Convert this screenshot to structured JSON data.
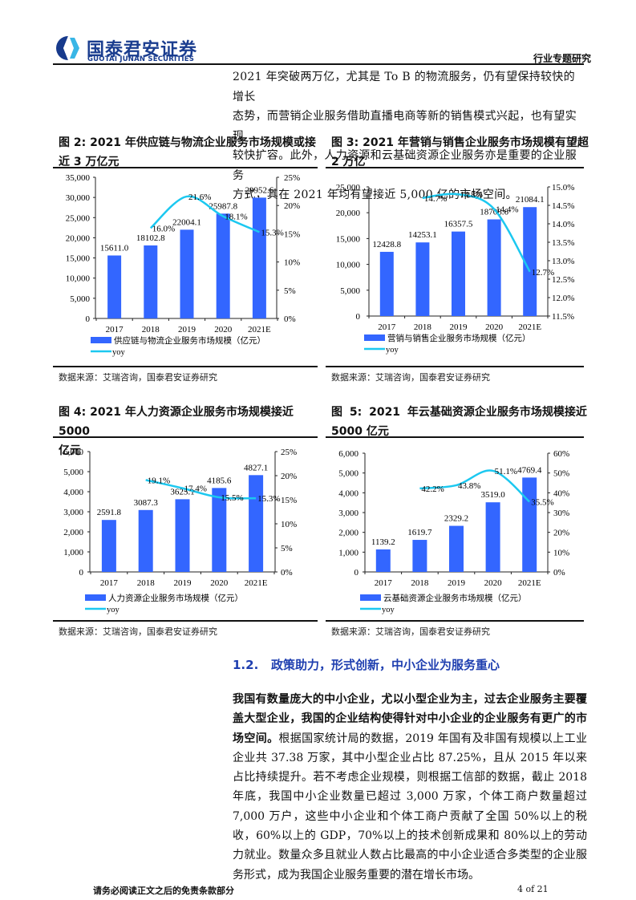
{
  "header": {
    "logo_cn": "国泰君安证券",
    "logo_en": "GUOTAI JUNAN SECURITIES",
    "report_type": "行业专题研究"
  },
  "intro": {
    "lines": [
      "2021 年突破两万亿，尤其是 To B 的物流服务，仍有望保持较快的增长",
      "态势，而营销企业服务借助直播电商等新的销售模式兴起，也有望实现",
      "较快扩容。此外，人力资源和云基础资源企业服务亦是重要的企业服务",
      "方式，其在 2021 年均有望接近 5,000 亿的市场空间。"
    ]
  },
  "figures": [
    {
      "title_line1": "图 2: 2021 年供应链与物流企业服务市场规模或接",
      "title_line2": "近 3 万亿元",
      "source": "数据来源：艾瑞咨询，国泰君安证券研究"
    },
    {
      "title_line1": "图 3: 2021 年营销与销售企业服务市场规模有望超",
      "title_line2": "2 万亿",
      "source": "数据来源：艾瑞咨询，国泰君安证券研究"
    },
    {
      "title_line1": "图 4: 2021 年人力资源企业服务市场规模接近 5000",
      "title_line2": "亿元",
      "source": "数据来源：艾瑞咨询，国泰君安证券研究"
    },
    {
      "title_line1": "图 5: 2021 年云基础资源企业服务市场规模接近",
      "title_line2": "5000 亿元",
      "source": "数据来源：艾瑞咨询，国泰君安证券研究"
    }
  ],
  "chart_data": [
    {
      "type": "bar",
      "title": "图 2: 2021 年供应链与物流企业服务市场规模或接近 3 万亿元",
      "categories": [
        "2017",
        "2018",
        "2019",
        "2020",
        "2021E"
      ],
      "series": [
        {
          "name": "供应链与物流企业服务市场规模（亿元）",
          "type": "bar",
          "axis": "left",
          "values": [
            15611.0,
            18102.8,
            22004.1,
            25987.8,
            29952.6
          ],
          "labels": [
            "15611.0",
            "18102.8",
            "22004.1",
            "25987.8",
            "29952.6"
          ]
        },
        {
          "name": "yoy",
          "type": "line",
          "axis": "right",
          "values": [
            null,
            16.0,
            21.6,
            18.1,
            15.3
          ],
          "labels": [
            "",
            "16.0%",
            "21.6%",
            "18.1%",
            "15.3%"
          ]
        }
      ],
      "ylim": [
        0,
        35000
      ],
      "yticks": [
        "0",
        "5,000",
        "10,000",
        "15,000",
        "20,000",
        "25,000",
        "30,000",
        "35,000"
      ],
      "y2lim": [
        0,
        25
      ],
      "y2ticks": [
        "0%",
        "5%",
        "10%",
        "15%",
        "20%",
        "25%"
      ],
      "legend_position": "bottom",
      "grid": false
    },
    {
      "type": "bar",
      "title": "图 3: 2021 年营销与销售企业服务市场规模有望超 2 万亿",
      "categories": [
        "2017",
        "2018",
        "2019",
        "2020",
        "2021E"
      ],
      "series": [
        {
          "name": "营销与销售企业服务市场规模（亿元）",
          "type": "bar",
          "axis": "left",
          "values": [
            12428.8,
            14253.1,
            16357.5,
            18708.6,
            21084.1
          ],
          "labels": [
            "12428.8",
            "14253.1",
            "16357.5",
            "18708.6",
            "21084.1"
          ]
        },
        {
          "name": "yoy",
          "type": "line",
          "axis": "right",
          "values": [
            null,
            14.7,
            14.8,
            14.4,
            12.7
          ],
          "labels": [
            "",
            "14.7%",
            "14.8%",
            "14.4%",
            "12.7%"
          ]
        }
      ],
      "ylim": [
        0,
        25000
      ],
      "yticks": [
        "0",
        "5,000",
        "10,000",
        "15,000",
        "20,000",
        "25,000"
      ],
      "y2lim": [
        11.5,
        15.0
      ],
      "y2ticks": [
        "11.5%",
        "12.0%",
        "12.5%",
        "13.0%",
        "13.5%",
        "14.0%",
        "14.5%",
        "15.0%"
      ],
      "legend_position": "bottom",
      "grid": false
    },
    {
      "type": "bar",
      "title": "图 4: 2021 年人力资源企业服务市场规模接近 5000 亿元",
      "categories": [
        "2017",
        "2018",
        "2019",
        "2020",
        "2021E"
      ],
      "series": [
        {
          "name": "人力资源企业服务市场规模（亿元）",
          "type": "bar",
          "axis": "left",
          "values": [
            2591.8,
            3087.3,
            3625.1,
            4185.6,
            4827.1
          ],
          "labels": [
            "2591.8",
            "3087.3",
            "3625.1",
            "4185.6",
            "4827.1"
          ]
        },
        {
          "name": "yoy",
          "type": "line",
          "axis": "right",
          "values": [
            null,
            19.1,
            17.4,
            15.5,
            15.3
          ],
          "labels": [
            "",
            "19.1%",
            "17.4%",
            "15.5%",
            "15.3%"
          ]
        }
      ],
      "ylim": [
        0,
        6000
      ],
      "yticks": [
        "0",
        "1,000",
        "2,000",
        "3,000",
        "4,000",
        "5,000",
        "6,000"
      ],
      "y2lim": [
        0,
        25
      ],
      "y2ticks": [
        "0%",
        "5%",
        "10%",
        "15%",
        "20%",
        "25%"
      ],
      "legend_position": "bottom",
      "grid": false
    },
    {
      "type": "bar",
      "title": "图 5: 2021 年云基础资源企业服务市场规模接近 5000 亿元",
      "categories": [
        "2017",
        "2018",
        "2019",
        "2020",
        "2021E"
      ],
      "series": [
        {
          "name": "云基础资源企业服务市场规模（亿元）",
          "type": "bar",
          "axis": "left",
          "values": [
            1139.2,
            1619.7,
            2329.2,
            3519.0,
            4769.4
          ],
          "labels": [
            "1139.2",
            "1619.7",
            "2329.2",
            "3519.0",
            "4769.4"
          ]
        },
        {
          "name": "yoy",
          "type": "line",
          "axis": "right",
          "values": [
            null,
            42.2,
            43.8,
            51.1,
            35.5
          ],
          "labels": [
            "",
            "42.2%",
            "43.8%",
            "51.1%",
            "35.5%"
          ]
        }
      ],
      "ylim": [
        0,
        6000
      ],
      "yticks": [
        "0",
        "1,000",
        "2,000",
        "3,000",
        "4,000",
        "5,000",
        "6,000"
      ],
      "y2lim": [
        0,
        60
      ],
      "y2ticks": [
        "0%",
        "10%",
        "20%",
        "30%",
        "40%",
        "50%",
        "60%"
      ],
      "legend_position": "bottom",
      "grid": false
    }
  ],
  "colors": {
    "bar": "#3366ff",
    "line": "#1cc8f0",
    "section": "#1f3fb0",
    "logo": "#1a3d8f"
  },
  "section": {
    "number": "1.2.",
    "title": "政策助力，形式创新，中小企业为服务重心"
  },
  "body": {
    "bold": "我国有数量庞大的中小企业，尤以小型企业为主，过去企业服务主要覆盖大型企业，我国的企业结构使得针对中小企业的企业服务有更广的市场空间。",
    "normal": "根据国家统计局的数据，2019 年国有及非国有规模以上工业企业共 37.38 万家，其中小型企业占比 87.25%，且从 2015 年以来占比持续提升。若不考虑企业规模，则根据工信部的数据，截止 2018 年底，我国中小企业数量已超过 3,000 万家，个体工商户数量超过 7,000 万户，这些中小企业和个体工商户贡献了全国 50%以上的税收，60%以上的 GDP，70%以上的技术创新成果和 80%以上的劳动力就业。数量众多且就业人数占比最高的中小企业适合多类型的企业服务形式，成为我国企业服务重要的潜在增长市场。"
  },
  "footer": {
    "disclaimer": "请务必阅读正文之后的免责条款部分",
    "page": "4 of 21"
  }
}
